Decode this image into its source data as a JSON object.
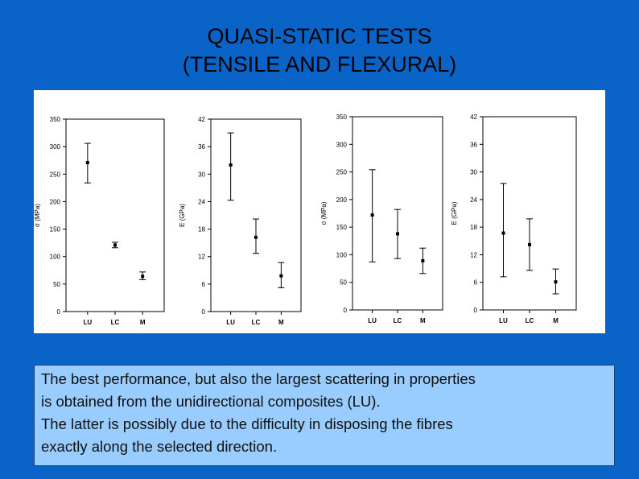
{
  "title": {
    "line1": "QUASI-STATIC TESTS",
    "line2": "(TENSILE AND FLEXURAL)"
  },
  "chart_data": [
    {
      "type": "scatter",
      "error_bars": true,
      "categories": [
        "LU",
        "LC",
        "M"
      ],
      "ylabel": "σ (MPa)",
      "ylim": [
        0,
        350
      ],
      "yticks": [
        "0",
        "50",
        "100",
        "150",
        "200",
        "250",
        "300",
        "350"
      ],
      "values": [
        271,
        121,
        64
      ],
      "error_low": [
        234,
        116,
        58
      ],
      "error_high": [
        306,
        126,
        72
      ]
    },
    {
      "type": "scatter",
      "error_bars": true,
      "categories": [
        "LU",
        "LC",
        "M"
      ],
      "ylabel": "E (GPa)",
      "ylim": [
        0,
        42
      ],
      "yticks": [
        "0",
        "6",
        "12",
        "18",
        "24",
        "30",
        "36",
        "42"
      ],
      "values": [
        32,
        16.2,
        7.8
      ],
      "error_low": [
        24.3,
        12.7,
        5.2
      ],
      "error_high": [
        39,
        20.2,
        10.7
      ]
    },
    {
      "type": "scatter",
      "error_bars": true,
      "categories": [
        "LU",
        "LC",
        "M"
      ],
      "ylabel": "σ (MPa)",
      "ylim": [
        0,
        350
      ],
      "yticks": [
        "0",
        "50",
        "100",
        "150",
        "200",
        "250",
        "300",
        "350"
      ],
      "values": [
        172,
        138,
        89
      ],
      "error_low": [
        87,
        93,
        66
      ],
      "error_high": [
        254,
        182,
        112
      ]
    },
    {
      "type": "scatter",
      "error_bars": true,
      "categories": [
        "LU",
        "LC",
        "M"
      ],
      "ylabel": "E (GPa)",
      "ylim": [
        0,
        42
      ],
      "yticks": [
        "0",
        "6",
        "12",
        "18",
        "24",
        "30",
        "36",
        "42"
      ],
      "values": [
        16.7,
        14.2,
        6.1
      ],
      "error_low": [
        7.2,
        8.6,
        3.5
      ],
      "error_high": [
        27.5,
        19.8,
        8.9
      ]
    }
  ],
  "note": {
    "line1": "The best performance, but also the largest scattering in properties",
    "line2": "is obtained from the unidirectional composites (LU).",
    "line3": "The latter is possibly due to the difficulty in disposing the fibres",
    "line4": "exactly along the selected direction."
  }
}
